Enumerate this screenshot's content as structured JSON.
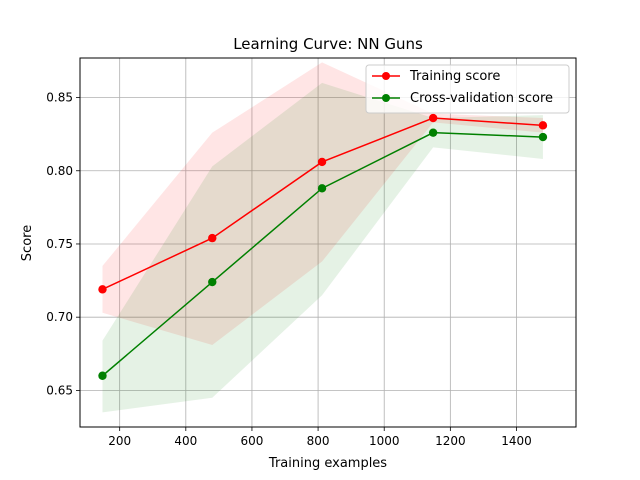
{
  "chart_data": {
    "type": "line",
    "title": "Learning Curve: NN Guns",
    "xlabel": "Training examples",
    "ylabel": "Score",
    "xlim": [
      80,
      1580
    ],
    "ylim": [
      0.625,
      0.877
    ],
    "x_ticks": [
      200,
      400,
      600,
      800,
      1000,
      1200,
      1400
    ],
    "y_ticks": [
      0.65,
      0.7,
      0.75,
      0.8,
      0.85
    ],
    "grid": true,
    "legend": "top-right",
    "x": [
      148,
      480,
      812,
      1148,
      1480
    ],
    "series": [
      {
        "name": "Training score",
        "color": "#ff0000",
        "values": [
          0.719,
          0.754,
          0.806,
          0.836,
          0.831
        ],
        "band_upper": [
          0.735,
          0.826,
          0.874,
          0.839,
          0.836
        ],
        "band_lower": [
          0.703,
          0.681,
          0.738,
          0.833,
          0.826
        ]
      },
      {
        "name": "Cross-validation score",
        "color": "#008000",
        "values": [
          0.66,
          0.724,
          0.788,
          0.826,
          0.823
        ],
        "band_upper": [
          0.684,
          0.803,
          0.86,
          0.836,
          0.838
        ],
        "band_lower": [
          0.635,
          0.645,
          0.715,
          0.816,
          0.808
        ]
      }
    ]
  }
}
